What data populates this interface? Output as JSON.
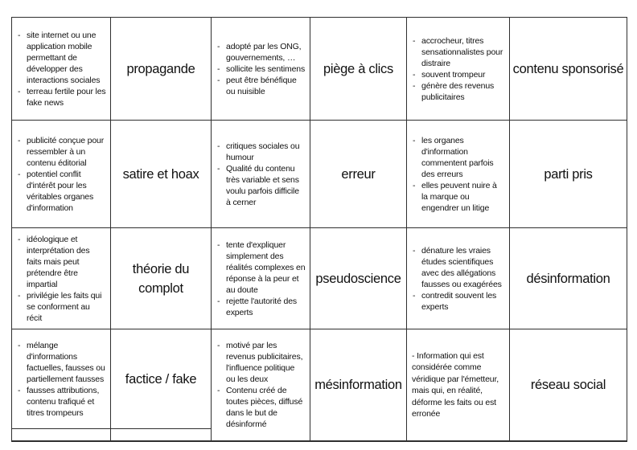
{
  "colors": {
    "border": "#2f2f2f",
    "text": "#111111",
    "background": "#ffffff"
  },
  "ui": {
    "bullet_char": "-"
  },
  "grid": {
    "rows": [
      {
        "cells": [
          {
            "bullets": [
              "site internet ou une application mobile permettant de développer des interactions sociales",
              "terreau fertile pour les fake news"
            ]
          },
          {
            "label": "propagande"
          },
          {
            "bullets": [
              "adopté par les ONG, gouvernements, …",
              "sollicite les sentimens",
              "peut être bénéfique ou nuisible"
            ]
          },
          {
            "label": "piège à clics"
          },
          {
            "bullets": [
              "accrocheur, titres sensationnalistes pour distraire",
              "souvent trompeur",
              "génère des revenus publicitaires"
            ]
          },
          {
            "label": "contenu sponsorisé"
          }
        ]
      },
      {
        "cells": [
          {
            "bullets": [
              "publicité conçue pour ressembler à un contenu éditorial",
              "potentiel conflit d'intérêt pour les véritables organes d'information"
            ]
          },
          {
            "label": "satire et hoax"
          },
          {
            "bullets": [
              "critiques sociales ou humour",
              "Qualité du contenu très variable et sens voulu parfois difficile à cerner"
            ]
          },
          {
            "label": "erreur"
          },
          {
            "bullets": [
              "les organes d'information commentent parfois des erreurs",
              "elles peuvent nuire à la marque ou engendrer un litige"
            ]
          },
          {
            "label": "parti pris"
          }
        ]
      },
      {
        "cells": [
          {
            "bullets": [
              "idéologique et interprétation des faits mais peut prétendre être impartial",
              "privilégie les faits qui se conforment au récit"
            ]
          },
          {
            "label": "théorie du complot"
          },
          {
            "bullets": [
              "tente d'expliquer simplement des réalités complexes en réponse à la peur et au doute",
              "rejette l'autorité des experts"
            ]
          },
          {
            "label": "pseudoscience"
          },
          {
            "bullets": [
              "dénature les vraies études scientifiques avec des allégations fausses ou exagérées",
              "contredit souvent les experts"
            ]
          },
          {
            "label": "désinformation"
          }
        ]
      },
      {
        "cells": [
          {
            "bullets": [
              "mélange d'informations factuelles, fausses ou partiellement fausses",
              "fausses attributions, contenu trafiqué et titres trompeurs"
            ]
          },
          {
            "label": "factice / fake"
          },
          {
            "bullets": [
              "motivé par les revenus publicitaires, l'influence politique ou les deux",
              "Contenu créé de toutes pièces, diffusé dans le but de désinformé"
            ]
          },
          {
            "label": "mésinformation"
          },
          {
            "paragraph": "- Information qui est considérée comme véridique par l'émetteur, mais qui, en réalité, déforme les faits ou est erronée"
          },
          {
            "label": "réseau social"
          }
        ]
      }
    ]
  }
}
